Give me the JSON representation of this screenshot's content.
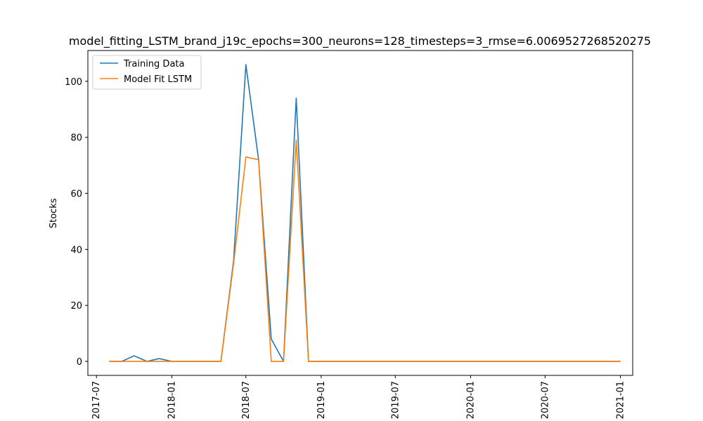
{
  "chart_data": {
    "type": "line",
    "title": "model_fitting_LSTM_brand_j19c_epochs=300_neurons=128_timesteps=3_rmse=6.0069527268520275",
    "xlabel": "",
    "ylabel": "Stocks",
    "ylim": [
      -5,
      111
    ],
    "xlim": [
      "2017-06-10",
      "2021-01-31"
    ],
    "y_ticks": [
      0,
      20,
      40,
      60,
      80,
      100
    ],
    "x_ticks": [
      "2017-07",
      "2018-01",
      "2018-07",
      "2019-01",
      "2019-07",
      "2020-01",
      "2020-07",
      "2021-01"
    ],
    "x_ticks_dates": [
      "2017-07-01",
      "2018-01-01",
      "2018-07-01",
      "2019-01-01",
      "2019-07-01",
      "2020-01-01",
      "2020-07-01",
      "2021-01-01"
    ],
    "grid": false,
    "legend_position": "top-left",
    "x": [
      "2017-08-01",
      "2017-09-01",
      "2017-10-01",
      "2017-11-01",
      "2017-12-01",
      "2018-01-01",
      "2018-02-01",
      "2018-03-01",
      "2018-04-01",
      "2018-05-01",
      "2018-06-01",
      "2018-07-01",
      "2018-08-01",
      "2018-09-01",
      "2018-10-01",
      "2018-11-01",
      "2018-12-01",
      "2019-01-01",
      "2019-02-01",
      "2019-03-01",
      "2019-04-01",
      "2019-05-01",
      "2019-06-01",
      "2019-07-01",
      "2019-08-01",
      "2019-09-01",
      "2019-10-01",
      "2019-11-01",
      "2019-12-01",
      "2020-01-01",
      "2020-02-01",
      "2020-03-01",
      "2020-04-01",
      "2020-05-01",
      "2020-06-01",
      "2020-07-01",
      "2020-08-01",
      "2020-09-01",
      "2020-10-01",
      "2020-11-01",
      "2020-12-01",
      "2021-01-01"
    ],
    "series": [
      {
        "name": "Training Data",
        "color": "#1f77b4",
        "values": [
          0,
          0,
          2,
          0,
          1,
          0,
          0,
          0,
          0,
          0,
          36,
          106,
          72,
          8,
          0,
          94,
          0,
          0,
          0,
          0,
          0,
          0,
          0,
          0,
          0,
          0,
          0,
          0,
          0,
          0,
          0,
          0,
          0,
          0,
          0,
          0,
          0,
          0,
          0,
          0,
          0,
          0
        ]
      },
      {
        "name": "Model Fit LSTM",
        "color": "#ff7f0e",
        "values": [
          0,
          0,
          0,
          0,
          0,
          0,
          0,
          0,
          0,
          0,
          35,
          73,
          72,
          0,
          0,
          79,
          0,
          0,
          0,
          0,
          0,
          0,
          0,
          0,
          0,
          0,
          0,
          0,
          0,
          0,
          0,
          0,
          0,
          0,
          0,
          0,
          0,
          0,
          0,
          0,
          0,
          0
        ]
      }
    ]
  }
}
